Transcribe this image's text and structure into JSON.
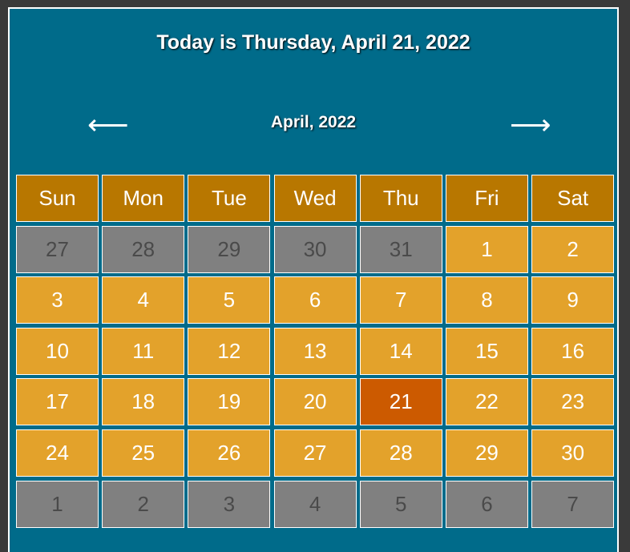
{
  "header": {
    "today_text": "Today is Thursday, April 21, 2022",
    "month_label": "April, 2022",
    "prev_arrow": "⟵",
    "next_arrow": "⟶"
  },
  "colors": {
    "background": "#006b8a",
    "weekday_header": "#b87700",
    "current_month_day": "#e3a22b",
    "other_month_day": "#808080",
    "today": "#cc5a00"
  },
  "weekdays": [
    "Sun",
    "Mon",
    "Tue",
    "Wed",
    "Thu",
    "Fri",
    "Sat"
  ],
  "days": [
    {
      "label": "27",
      "type": "other"
    },
    {
      "label": "28",
      "type": "other"
    },
    {
      "label": "29",
      "type": "other"
    },
    {
      "label": "30",
      "type": "other"
    },
    {
      "label": "31",
      "type": "other"
    },
    {
      "label": "1",
      "type": "current"
    },
    {
      "label": "2",
      "type": "current"
    },
    {
      "label": "3",
      "type": "current"
    },
    {
      "label": "4",
      "type": "current"
    },
    {
      "label": "5",
      "type": "current"
    },
    {
      "label": "6",
      "type": "current"
    },
    {
      "label": "7",
      "type": "current"
    },
    {
      "label": "8",
      "type": "current"
    },
    {
      "label": "9",
      "type": "current"
    },
    {
      "label": "10",
      "type": "current"
    },
    {
      "label": "11",
      "type": "current"
    },
    {
      "label": "12",
      "type": "current"
    },
    {
      "label": "13",
      "type": "current"
    },
    {
      "label": "14",
      "type": "current"
    },
    {
      "label": "15",
      "type": "current"
    },
    {
      "label": "16",
      "type": "current"
    },
    {
      "label": "17",
      "type": "current"
    },
    {
      "label": "18",
      "type": "current"
    },
    {
      "label": "19",
      "type": "current"
    },
    {
      "label": "20",
      "type": "current"
    },
    {
      "label": "21",
      "type": "today"
    },
    {
      "label": "22",
      "type": "current"
    },
    {
      "label": "23",
      "type": "current"
    },
    {
      "label": "24",
      "type": "current"
    },
    {
      "label": "25",
      "type": "current"
    },
    {
      "label": "26",
      "type": "current"
    },
    {
      "label": "27",
      "type": "current"
    },
    {
      "label": "28",
      "type": "current"
    },
    {
      "label": "29",
      "type": "current"
    },
    {
      "label": "30",
      "type": "current"
    },
    {
      "label": "1",
      "type": "other"
    },
    {
      "label": "2",
      "type": "other"
    },
    {
      "label": "3",
      "type": "other"
    },
    {
      "label": "4",
      "type": "other"
    },
    {
      "label": "5",
      "type": "other"
    },
    {
      "label": "6",
      "type": "other"
    },
    {
      "label": "7",
      "type": "other"
    }
  ]
}
